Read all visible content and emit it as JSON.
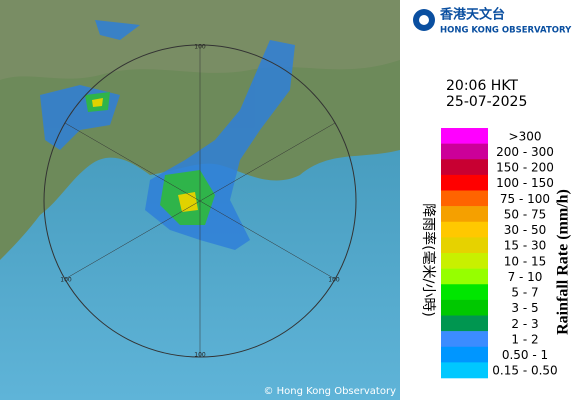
{
  "logo": {
    "chinese": "香港天文台",
    "english": "HONG KONG OBSERVATORY"
  },
  "time": "20:06 HKT",
  "date": "25-07-2025",
  "legend": {
    "title_chinese": "降雨率(毫米/小時)",
    "title_english": "Rainfall Rate (mm/h)",
    "items": [
      {
        "label": ">300",
        "color": "#ff00ff"
      },
      {
        "label": "200 - 300",
        "color": "#cc0099"
      },
      {
        "label": "150 - 200",
        "color": "#c80032"
      },
      {
        "label": "100 - 150",
        "color": "#ff0000"
      },
      {
        "label": "75 - 100",
        "color": "#ff6400"
      },
      {
        "label": "50 - 75",
        "color": "#f5a000"
      },
      {
        "label": "30 - 50",
        "color": "#ffc800"
      },
      {
        "label": "15 - 30",
        "color": "#e6d200"
      },
      {
        "label": "10 - 15",
        "color": "#c8f000"
      },
      {
        "label": "7 - 10",
        "color": "#96ff00"
      },
      {
        "label": "5 - 7",
        "color": "#00e600"
      },
      {
        "label": "3 - 5",
        "color": "#00c800"
      },
      {
        "label": "2 - 3",
        "color": "#009650"
      },
      {
        "label": "1 - 2",
        "color": "#3c8cff"
      },
      {
        "label": "0.50 - 1",
        "color": "#0096ff"
      },
      {
        "label": "0.15 - 0.50",
        "color": "#00c8ff"
      }
    ]
  },
  "range_labels": [
    "100",
    "100",
    "100",
    "100"
  ],
  "copyright": "© Hong Kong Observatory"
}
